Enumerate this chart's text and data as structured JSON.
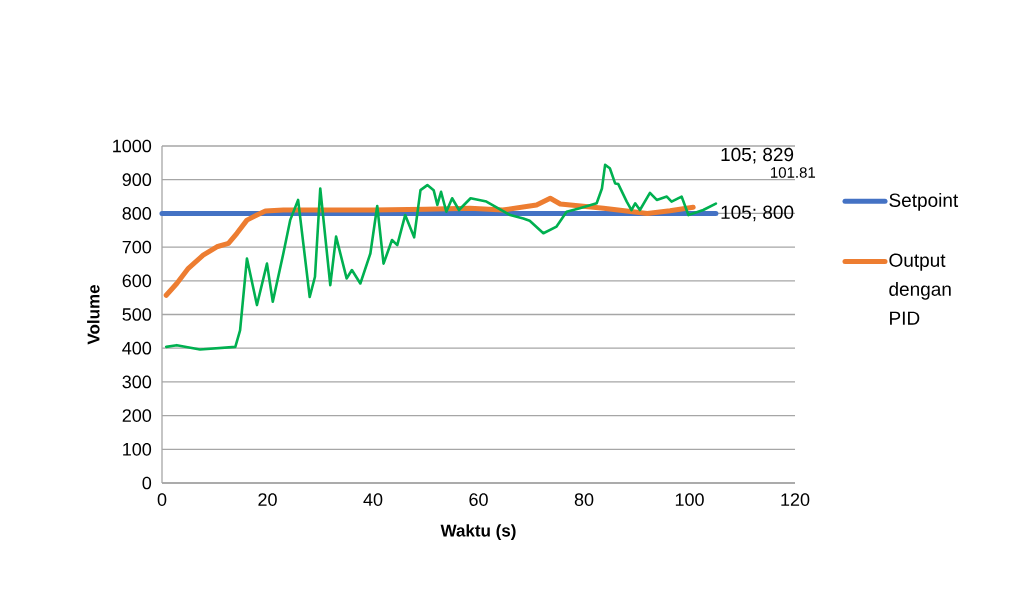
{
  "chart_data": {
    "type": "line",
    "xlabel": "Waktu (s)",
    "ylabel": "Volume",
    "xlim": [
      0,
      120
    ],
    "xticks": [
      0,
      20,
      40,
      60,
      80,
      100,
      120
    ],
    "ylim": [
      0,
      1000
    ],
    "yticks": [
      0,
      100,
      200,
      300,
      400,
      500,
      600,
      700,
      800,
      900,
      1000
    ],
    "grid": "y",
    "legend": "right",
    "line_style": "solid",
    "marker": "none",
    "series": [
      {
        "name": "Setpoint",
        "color": "#4472c4",
        "x": [
          0,
          105
        ],
        "values": [
          800,
          800
        ]
      },
      {
        "name": "Output dengan PID",
        "color": "#ed7d31",
        "x": [
          0.8,
          2.8,
          5,
          7.8,
          10.4,
          12.6,
          14.2,
          16.1,
          18,
          19.6,
          23,
          30,
          40,
          50,
          58.4,
          64.6,
          71,
          73.6,
          75.5,
          83.7,
          92,
          96.3,
          100.7
        ],
        "values": [
          557,
          592,
          637,
          676,
          701,
          711,
          741,
          780,
          795,
          807,
          810,
          810,
          810,
          812,
          815,
          810,
          825,
          845,
          828,
          815,
          800,
          808,
          818
        ]
      },
      {
        "color": "#00b050",
        "x": [
          0.8,
          2.8,
          7.2,
          13.9,
          14.8,
          16.1,
          18,
          19.9,
          21,
          23,
          24.3,
          25.8,
          28,
          29,
          30,
          31.9,
          33,
          35,
          36,
          37.6,
          39.5,
          40.8,
          42,
          43.6,
          44.6,
          46.1,
          47.8,
          49,
          50.3,
          51.5,
          52.2,
          52.9,
          53.9,
          55,
          56.3,
          58.5,
          61.5,
          66,
          68.5,
          69.7,
          72.3,
          74.8,
          76.7,
          79.2,
          82.4,
          83.4,
          84,
          84.9,
          85.9,
          86.5,
          88.1,
          89,
          89.7,
          90.6,
          92.5,
          93.8,
          95.7,
          96.6,
          98.5,
          99.8,
          102.6,
          105
        ],
        "values": [
          404,
          409,
          396,
          404,
          453,
          666,
          528,
          651,
          538,
          681,
          780,
          840,
          552,
          612,
          874,
          587,
          731,
          607,
          632,
          592,
          681,
          822,
          651,
          721,
          706,
          795,
          729,
          869,
          884,
          869,
          825,
          864,
          805,
          845,
          810,
          845,
          835,
          795,
          785,
          778,
          741,
          761,
          805,
          815,
          830,
          874,
          944,
          934,
          889,
          887,
          835,
          810,
          830,
          810,
          861,
          840,
          850,
          835,
          850,
          795,
          810,
          829
        ]
      }
    ],
    "annotations": [
      {
        "text": "105; 829",
        "x": 105,
        "y": 829
      },
      "101.81",
      {
        "text": "105; 800",
        "x": 105,
        "y": 800
      }
    ]
  }
}
